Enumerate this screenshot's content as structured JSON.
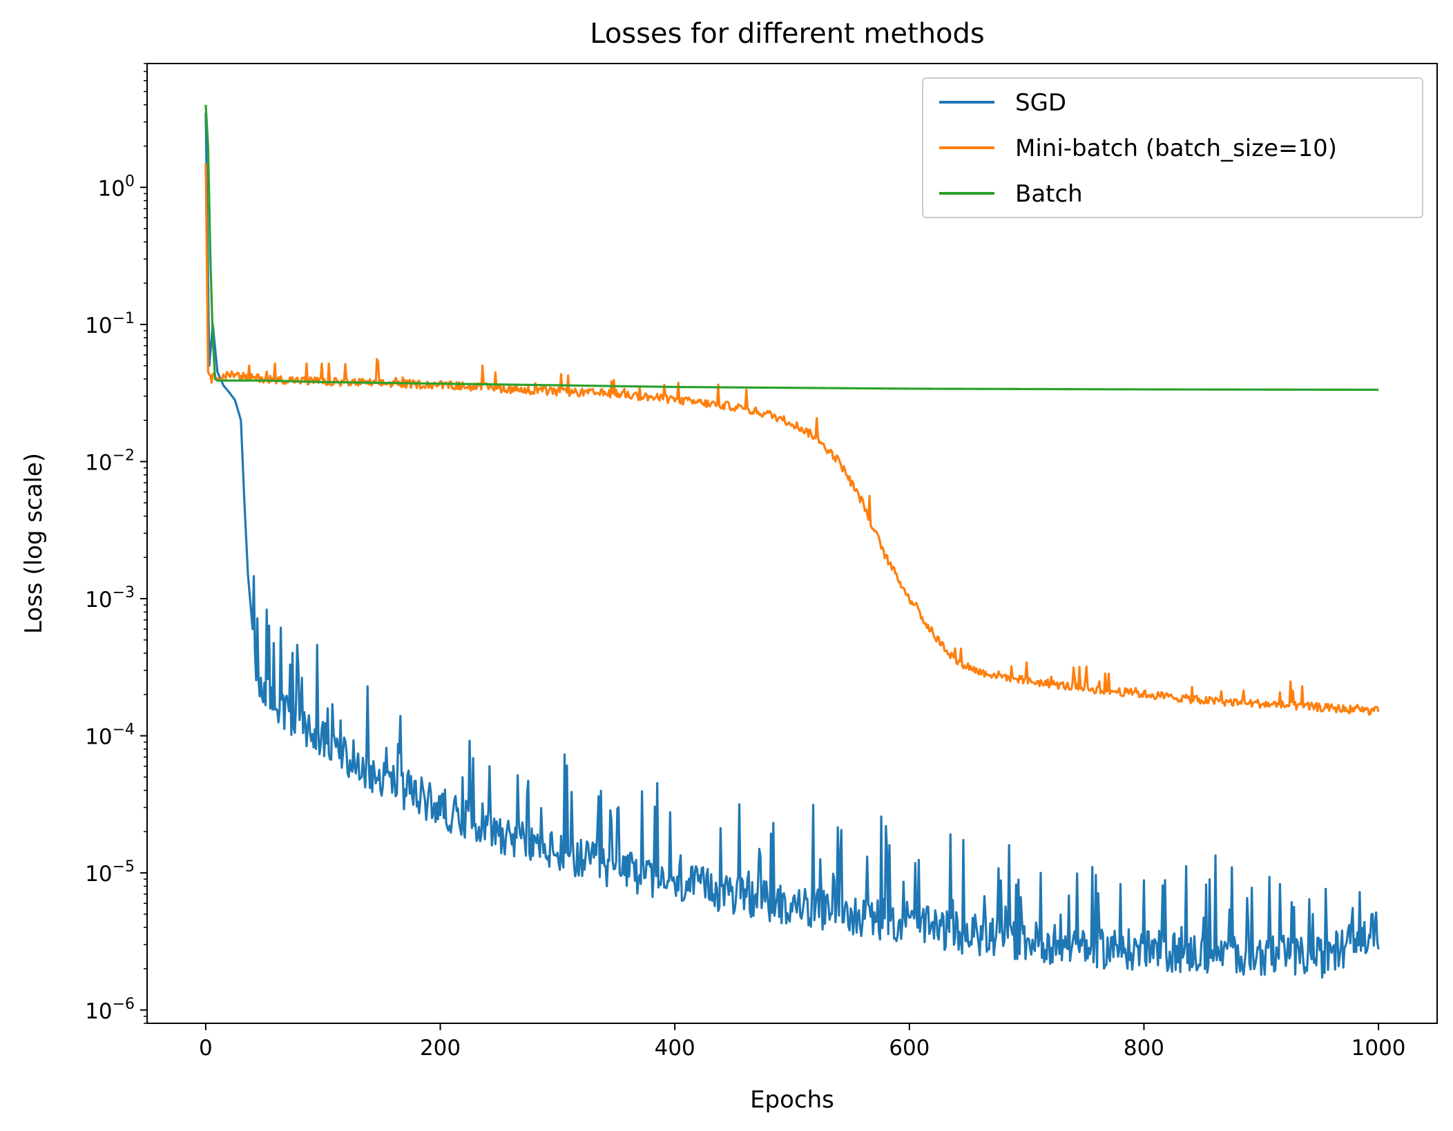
{
  "chart_data": {
    "type": "line",
    "title": "Losses for different methods",
    "xlabel": "Epochs",
    "ylabel": "Loss (log scale)",
    "xlim": [
      -50,
      1050
    ],
    "ylim": [
      8e-07,
      8.0
    ],
    "yscale": "log",
    "x_ticks": [
      0,
      200,
      400,
      600,
      800,
      1000
    ],
    "x_tick_labels": [
      "0",
      "200",
      "400",
      "600",
      "800",
      "1000"
    ],
    "y_ticks": [
      0,
      -1,
      -2,
      -3,
      -4,
      -5,
      -6
    ],
    "y_tick_labels": [
      {
        "base": "10",
        "exp": "0"
      },
      {
        "base": "10",
        "exp": "−1"
      },
      {
        "base": "10",
        "exp": "−2"
      },
      {
        "base": "10",
        "exp": "−3"
      },
      {
        "base": "10",
        "exp": "−4"
      },
      {
        "base": "10",
        "exp": "−5"
      },
      {
        "base": "10",
        "exp": "−6"
      }
    ],
    "grid": false,
    "legend_position": "top-right",
    "series": [
      {
        "name": "SGD",
        "color": "#1f77b4",
        "x": [
          0,
          3,
          6,
          10,
          15,
          20,
          25,
          30,
          33,
          36,
          40,
          43,
          46,
          50,
          60,
          80,
          100,
          120,
          150,
          200,
          250,
          300,
          350,
          400,
          450,
          500,
          550,
          600,
          650,
          700,
          750,
          800,
          850,
          900,
          950,
          1000
        ],
        "y": [
          3.5,
          0.05,
          0.1,
          0.045,
          0.036,
          0.032,
          0.028,
          0.02,
          0.005,
          0.0015,
          0.0006,
          0.0003,
          0.00025,
          0.00022,
          0.00017,
          0.00012,
          9e-05,
          7e-05,
          5e-05,
          3e-05,
          2e-05,
          1.4e-05,
          1.05e-05,
          8.5e-06,
          7e-06,
          5.8e-06,
          5e-06,
          4.2e-06,
          3.6e-06,
          3.2e-06,
          2.9e-06,
          2.7e-06,
          2.6e-06,
          2.5e-06,
          2.4e-06,
          3.8e-06
        ],
        "noise": "high"
      },
      {
        "name": "Mini-batch (batch_size=10)",
        "color": "#ff7f0e",
        "x": [
          0,
          2,
          5,
          10,
          20,
          50,
          100,
          150,
          200,
          250,
          300,
          350,
          400,
          450,
          480,
          500,
          520,
          540,
          560,
          580,
          600,
          620,
          640,
          660,
          680,
          700,
          750,
          800,
          850,
          900,
          950,
          1000
        ],
        "y": [
          1.5,
          0.045,
          0.04,
          0.042,
          0.042,
          0.04,
          0.038,
          0.037,
          0.036,
          0.034,
          0.032,
          0.031,
          0.028,
          0.025,
          0.022,
          0.019,
          0.015,
          0.01,
          0.005,
          0.002,
          0.001,
          0.00055,
          0.00035,
          0.00029,
          0.00027,
          0.00025,
          0.00022,
          0.0002,
          0.00018,
          0.00017,
          0.00016,
          0.00015
        ],
        "noise": "medium"
      },
      {
        "name": "Batch",
        "color": "#2ca02c",
        "x": [
          0,
          2,
          4,
          6,
          8,
          10,
          50,
          100,
          200,
          300,
          400,
          500,
          600,
          700,
          800,
          900,
          1000
        ],
        "y": [
          4.0,
          2.0,
          0.3,
          0.08,
          0.04,
          0.039,
          0.039,
          0.038,
          0.037,
          0.036,
          0.035,
          0.0345,
          0.034,
          0.0338,
          0.0336,
          0.0335,
          0.0334
        ],
        "noise": "none"
      }
    ]
  }
}
